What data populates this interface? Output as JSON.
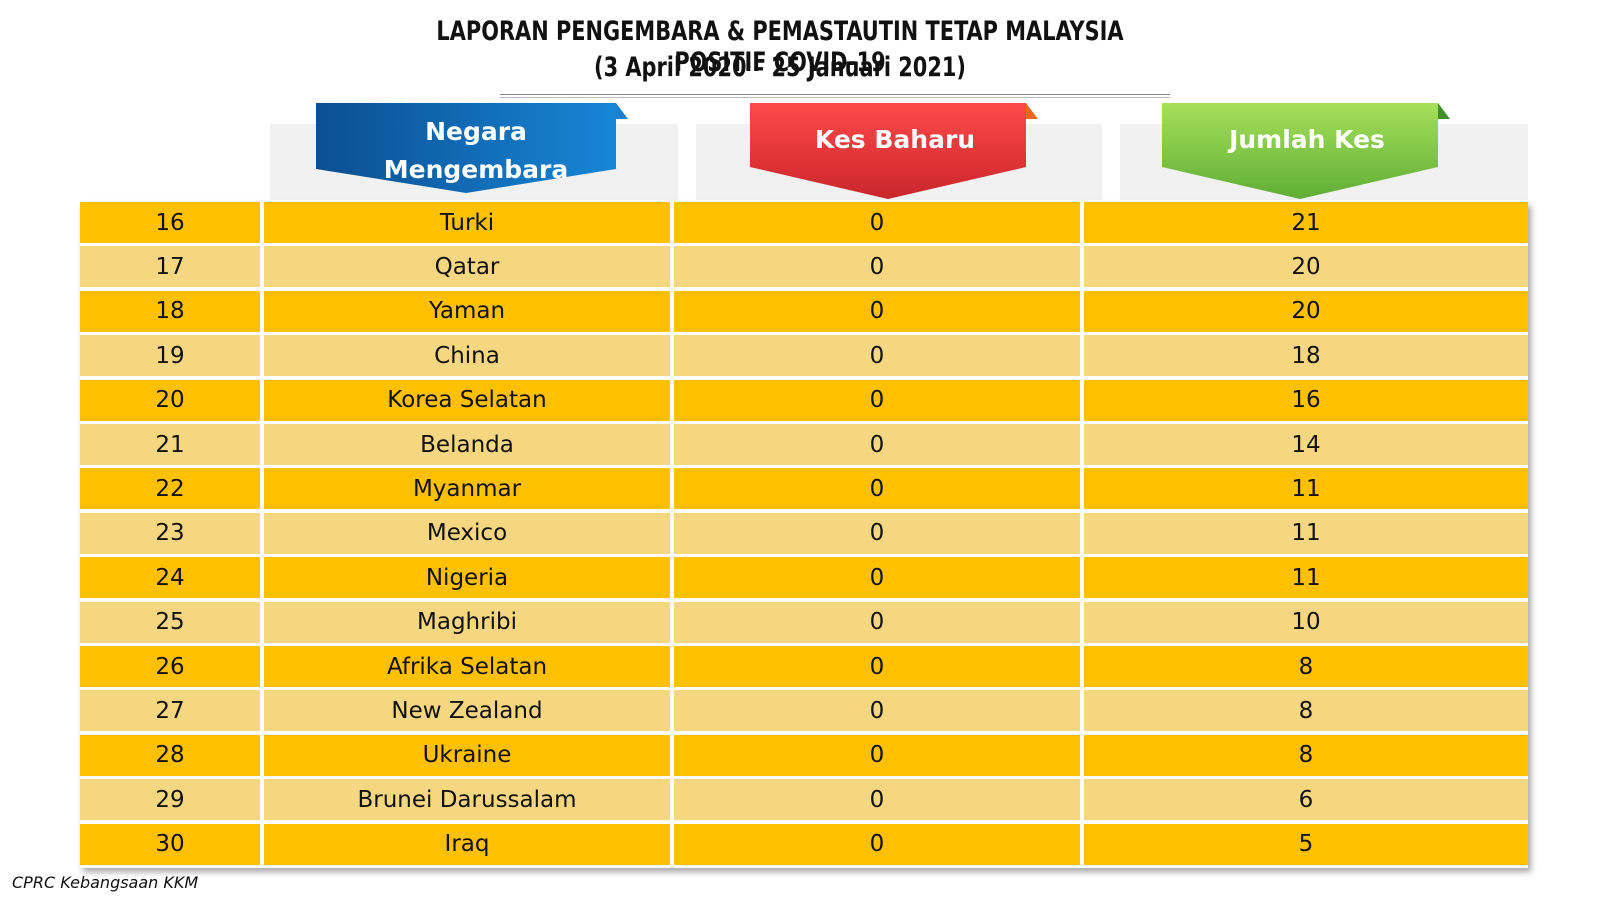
{
  "header": {
    "title_line1": "LAPORAN PENGEMBARA & PEMASTAUTIN TETAP MALAYSIA POSITIF COVID-19",
    "title_line2": "(3 April 2020 –  25 Januari 2021)"
  },
  "columns": {
    "negara_line1": "Negara",
    "negara_line2": "Mengembara",
    "kes_baharu": "Kes Baharu",
    "jumlah_kes": "Jumlah Kes"
  },
  "colors": {
    "row_dark": "#ffc000",
    "row_light": "#f5d681",
    "badge_blue": "#0070c0",
    "badge_red": "#e8363b",
    "badge_green": "#7cc843"
  },
  "chart_data": {
    "type": "table",
    "title": "LAPORAN PENGEMBARA & PEMASTAUTIN TETAP MALAYSIA POSITIF COVID-19",
    "subtitle": "(3 April 2020 –  25 Januari 2021)",
    "columns": [
      "",
      "Negara Mengembara",
      "Kes Baharu",
      "Jumlah Kes"
    ],
    "rows": [
      {
        "rank": "16",
        "country": "Turki",
        "kes_baharu": "0",
        "jumlah_kes": "21"
      },
      {
        "rank": "17",
        "country": "Qatar",
        "kes_baharu": "0",
        "jumlah_kes": "20"
      },
      {
        "rank": "18",
        "country": "Yaman",
        "kes_baharu": "0",
        "jumlah_kes": "20"
      },
      {
        "rank": "19",
        "country": "China",
        "kes_baharu": "0",
        "jumlah_kes": "18"
      },
      {
        "rank": "20",
        "country": "Korea Selatan",
        "kes_baharu": "0",
        "jumlah_kes": "16"
      },
      {
        "rank": "21",
        "country": "Belanda",
        "kes_baharu": "0",
        "jumlah_kes": "14"
      },
      {
        "rank": "22",
        "country": "Myanmar",
        "kes_baharu": "0",
        "jumlah_kes": "11"
      },
      {
        "rank": "23",
        "country": "Mexico",
        "kes_baharu": "0",
        "jumlah_kes": "11"
      },
      {
        "rank": "24",
        "country": "Nigeria",
        "kes_baharu": "0",
        "jumlah_kes": "11"
      },
      {
        "rank": "25",
        "country": "Maghribi",
        "kes_baharu": "0",
        "jumlah_kes": "10"
      },
      {
        "rank": "26",
        "country": "Afrika Selatan",
        "kes_baharu": "0",
        "jumlah_kes": "8"
      },
      {
        "rank": "27",
        "country": "New Zealand",
        "kes_baharu": "0",
        "jumlah_kes": "8"
      },
      {
        "rank": "28",
        "country": "Ukraine",
        "kes_baharu": "0",
        "jumlah_kes": "8"
      },
      {
        "rank": "29",
        "country": "Brunei Darussalam",
        "kes_baharu": "0",
        "jumlah_kes": "6"
      },
      {
        "rank": "30",
        "country": "Iraq",
        "kes_baharu": "0",
        "jumlah_kes": "5"
      }
    ]
  },
  "footer": {
    "source": "CPRC Kebangsaan KKM"
  }
}
